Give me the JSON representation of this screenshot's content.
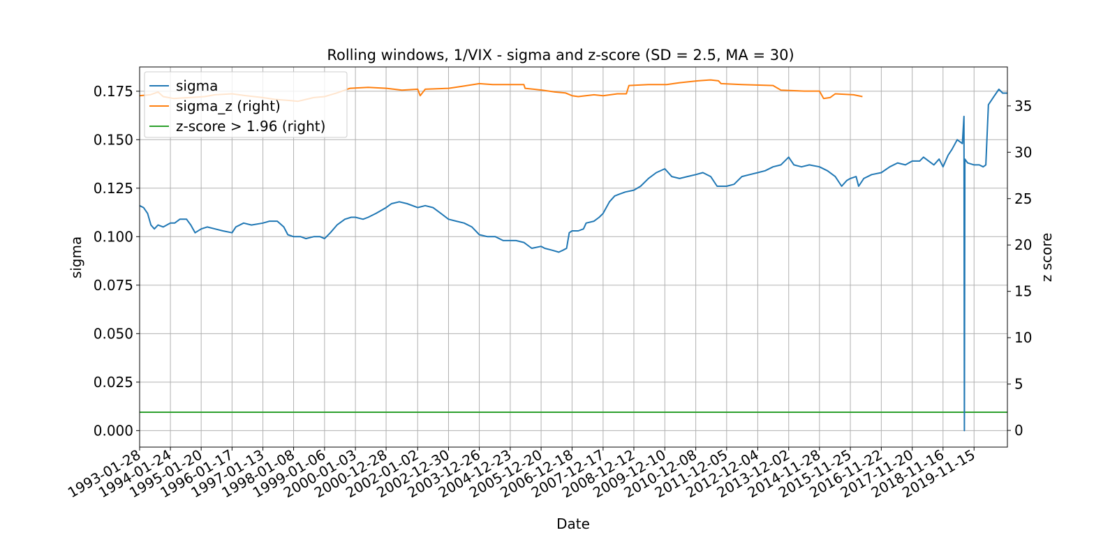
{
  "chart_data": {
    "type": "line",
    "title": "Rolling windows, 1/VIX - sigma and z-score (SD = 2.5, MA = 30)",
    "xlabel": "Date",
    "ylabel": "sigma",
    "y2label": "z score",
    "ylim": [
      -0.0085,
      0.1875
    ],
    "y2lim": [
      -1.8,
      39.2
    ],
    "yticks": [
      "0.000",
      "0.025",
      "0.050",
      "0.075",
      "0.100",
      "0.125",
      "0.150",
      "0.175"
    ],
    "y2ticks": [
      "0",
      "5",
      "10",
      "15",
      "20",
      "25",
      "30",
      "35"
    ],
    "xlim": [
      "1993-01-28",
      "2020-12-10"
    ],
    "xticks": [
      "1993-01-28",
      "1994-01-24",
      "1995-01-20",
      "1996-01-17",
      "1997-01-13",
      "1998-01-08",
      "1999-01-06",
      "2000-01-03",
      "2000-12-28",
      "2002-01-02",
      "2002-12-30",
      "2003-12-26",
      "2004-12-23",
      "2005-12-20",
      "2006-12-18",
      "2007-12-17",
      "2008-12-12",
      "2009-12-10",
      "2010-12-08",
      "2011-12-05",
      "2012-12-04",
      "2013-12-02",
      "2014-11-28",
      "2015-11-25",
      "2016-11-22",
      "2017-11-20",
      "2018-11-16",
      "2019-11-15"
    ],
    "grid": true,
    "legend_position": "upper-left",
    "colors": {
      "sigma": "#1f77b4",
      "sigma_z": "#ff7f0e",
      "threshold": "#2ca02c"
    },
    "series": [
      {
        "name": "sigma",
        "axis": "left",
        "color": "#1f77b4",
        "points": [
          [
            "1993-01-28",
            0.116
          ],
          [
            "1993-03-15",
            0.115
          ],
          [
            "1993-05-01",
            0.112
          ],
          [
            "1993-06-10",
            0.106
          ],
          [
            "1993-07-20",
            0.104
          ],
          [
            "1993-09-01",
            0.106
          ],
          [
            "1993-11-01",
            0.105
          ],
          [
            "1994-01-24",
            0.107
          ],
          [
            "1994-03-15",
            0.107
          ],
          [
            "1994-05-15",
            0.109
          ],
          [
            "1994-08-01",
            0.109
          ],
          [
            "1994-09-20",
            0.106
          ],
          [
            "1994-11-10",
            0.102
          ],
          [
            "1995-01-20",
            0.104
          ],
          [
            "1995-04-01",
            0.105
          ],
          [
            "1995-07-01",
            0.104
          ],
          [
            "1995-10-01",
            0.103
          ],
          [
            "1996-01-17",
            0.102
          ],
          [
            "1996-03-01",
            0.105
          ],
          [
            "1996-06-01",
            0.107
          ],
          [
            "1996-09-01",
            0.106
          ],
          [
            "1997-01-13",
            0.107
          ],
          [
            "1997-04-01",
            0.108
          ],
          [
            "1997-07-01",
            0.108
          ],
          [
            "1997-09-15",
            0.105
          ],
          [
            "1997-11-01",
            0.101
          ],
          [
            "1998-01-08",
            0.1
          ],
          [
            "1998-04-01",
            0.1
          ],
          [
            "1998-06-01",
            0.099
          ],
          [
            "1998-09-01",
            0.1
          ],
          [
            "1998-11-15",
            0.1
          ],
          [
            "1999-01-06",
            0.099
          ],
          [
            "1999-03-15",
            0.102
          ],
          [
            "1999-06-01",
            0.106
          ],
          [
            "1999-09-01",
            0.109
          ],
          [
            "1999-11-15",
            0.11
          ],
          [
            "2000-01-03",
            0.11
          ],
          [
            "2000-04-01",
            0.109
          ],
          [
            "2000-06-01",
            0.11
          ],
          [
            "2000-09-01",
            0.112
          ],
          [
            "2000-12-28",
            0.115
          ],
          [
            "2001-03-01",
            0.117
          ],
          [
            "2001-06-01",
            0.118
          ],
          [
            "2001-09-01",
            0.117
          ],
          [
            "2002-01-02",
            0.115
          ],
          [
            "2002-04-01",
            0.116
          ],
          [
            "2002-07-01",
            0.115
          ],
          [
            "2002-10-01",
            0.112
          ],
          [
            "2002-12-30",
            0.109
          ],
          [
            "2003-04-01",
            0.108
          ],
          [
            "2003-07-01",
            0.107
          ],
          [
            "2003-10-01",
            0.105
          ],
          [
            "2003-12-26",
            0.101
          ],
          [
            "2004-04-01",
            0.1
          ],
          [
            "2004-07-01",
            0.1
          ],
          [
            "2004-10-01",
            0.098
          ],
          [
            "2004-12-23",
            0.098
          ],
          [
            "2005-03-01",
            0.098
          ],
          [
            "2005-06-01",
            0.097
          ],
          [
            "2005-09-01",
            0.094
          ],
          [
            "2005-12-20",
            0.095
          ],
          [
            "2006-02-01",
            0.094
          ],
          [
            "2006-05-01",
            0.093
          ],
          [
            "2006-07-15",
            0.092
          ],
          [
            "2006-09-01",
            0.093
          ],
          [
            "2006-10-15",
            0.094
          ],
          [
            "2006-11-15",
            0.102
          ],
          [
            "2006-12-18",
            0.103
          ],
          [
            "2007-03-01",
            0.103
          ],
          [
            "2007-05-01",
            0.104
          ],
          [
            "2007-06-01",
            0.107
          ],
          [
            "2007-09-01",
            0.108
          ],
          [
            "2007-11-01",
            0.11
          ],
          [
            "2007-12-17",
            0.112
          ],
          [
            "2008-03-01",
            0.118
          ],
          [
            "2008-05-01",
            0.121
          ],
          [
            "2008-07-01",
            0.122
          ],
          [
            "2008-09-01",
            0.123
          ],
          [
            "2008-12-12",
            0.124
          ],
          [
            "2009-03-01",
            0.126
          ],
          [
            "2009-06-01",
            0.13
          ],
          [
            "2009-09-01",
            0.133
          ],
          [
            "2009-12-10",
            0.135
          ],
          [
            "2010-03-01",
            0.131
          ],
          [
            "2010-06-01",
            0.13
          ],
          [
            "2010-09-01",
            0.131
          ],
          [
            "2010-12-08",
            0.132
          ],
          [
            "2011-03-01",
            0.133
          ],
          [
            "2011-06-01",
            0.131
          ],
          [
            "2011-08-15",
            0.126
          ],
          [
            "2011-12-05",
            0.126
          ],
          [
            "2012-03-01",
            0.127
          ],
          [
            "2012-06-01",
            0.131
          ],
          [
            "2012-09-01",
            0.132
          ],
          [
            "2012-12-04",
            0.133
          ],
          [
            "2013-03-01",
            0.134
          ],
          [
            "2013-06-01",
            0.136
          ],
          [
            "2013-09-01",
            0.137
          ],
          [
            "2013-12-02",
            0.141
          ],
          [
            "2014-02-01",
            0.137
          ],
          [
            "2014-05-01",
            0.136
          ],
          [
            "2014-08-01",
            0.137
          ],
          [
            "2014-11-28",
            0.136
          ],
          [
            "2015-03-01",
            0.134
          ],
          [
            "2015-06-01",
            0.131
          ],
          [
            "2015-08-15",
            0.126
          ],
          [
            "2015-10-15",
            0.129
          ],
          [
            "2015-11-25",
            0.13
          ],
          [
            "2016-02-01",
            0.131
          ],
          [
            "2016-03-01",
            0.126
          ],
          [
            "2016-05-01",
            0.13
          ],
          [
            "2016-08-01",
            0.132
          ],
          [
            "2016-11-22",
            0.133
          ],
          [
            "2017-03-01",
            0.136
          ],
          [
            "2017-06-01",
            0.138
          ],
          [
            "2017-09-01",
            0.137
          ],
          [
            "2017-11-20",
            0.139
          ],
          [
            "2018-02-15",
            0.139
          ],
          [
            "2018-04-01",
            0.141
          ],
          [
            "2018-06-01",
            0.139
          ],
          [
            "2018-08-01",
            0.137
          ],
          [
            "2018-10-01",
            0.14
          ],
          [
            "2018-11-16",
            0.136
          ],
          [
            "2019-01-15",
            0.142
          ],
          [
            "2019-03-01",
            0.145
          ],
          [
            "2019-05-01",
            0.15
          ],
          [
            "2019-07-01",
            0.148
          ],
          [
            "2019-07-20",
            0.162
          ],
          [
            "2019-07-25",
            0.0
          ],
          [
            "2019-07-30",
            0.14
          ],
          [
            "2019-09-01",
            0.138
          ],
          [
            "2019-11-15",
            0.137
          ],
          [
            "2020-01-15",
            0.137
          ],
          [
            "2020-03-01",
            0.136
          ],
          [
            "2020-04-01",
            0.137
          ],
          [
            "2020-05-01",
            0.168
          ],
          [
            "2020-07-01",
            0.172
          ],
          [
            "2020-09-01",
            0.176
          ],
          [
            "2020-10-15",
            0.174
          ],
          [
            "2020-12-10",
            0.174
          ]
        ]
      },
      {
        "name": "sigma_z (right)",
        "axis": "right",
        "color": "#ff7f0e",
        "points": [
          [
            "1993-01-28",
            36.1
          ],
          [
            "1993-06-01",
            36.2
          ],
          [
            "1993-09-01",
            36.5
          ],
          [
            "1993-11-01",
            36.0
          ],
          [
            "1994-03-01",
            35.8
          ],
          [
            "1994-09-01",
            35.9
          ],
          [
            "1995-03-01",
            36.0
          ],
          [
            "1995-07-01",
            36.2
          ],
          [
            "1996-01-17",
            36.3
          ],
          [
            "1996-07-01",
            36.1
          ],
          [
            "1997-01-13",
            35.9
          ],
          [
            "1997-06-01",
            35.7
          ],
          [
            "1997-11-01",
            35.6
          ],
          [
            "1998-03-01",
            35.5
          ],
          [
            "1998-09-01",
            35.9
          ],
          [
            "1999-01-06",
            36.0
          ],
          [
            "1999-06-01",
            36.4
          ],
          [
            "1999-11-01",
            36.9
          ],
          [
            "2000-06-01",
            37.0
          ],
          [
            "2001-01-01",
            36.9
          ],
          [
            "2001-07-01",
            36.7
          ],
          [
            "2002-01-02",
            36.8
          ],
          [
            "2002-02-01",
            36.1
          ],
          [
            "2002-04-01",
            36.8
          ],
          [
            "2003-01-01",
            36.9
          ],
          [
            "2003-06-01",
            37.1
          ],
          [
            "2003-12-26",
            37.4
          ],
          [
            "2004-06-01",
            37.3
          ],
          [
            "2004-12-23",
            37.3
          ],
          [
            "2005-06-01",
            37.3
          ],
          [
            "2005-06-15",
            36.9
          ],
          [
            "2006-01-01",
            36.7
          ],
          [
            "2006-06-01",
            36.5
          ],
          [
            "2006-10-01",
            36.4
          ],
          [
            "2006-12-18",
            36.1
          ],
          [
            "2007-03-01",
            36.0
          ],
          [
            "2007-09-01",
            36.2
          ],
          [
            "2007-12-17",
            36.1
          ],
          [
            "2008-06-01",
            36.3
          ],
          [
            "2008-09-15",
            36.3
          ],
          [
            "2008-10-15",
            37.2
          ],
          [
            "2009-06-01",
            37.3
          ],
          [
            "2010-01-01",
            37.3
          ],
          [
            "2010-06-01",
            37.5
          ],
          [
            "2011-01-01",
            37.7
          ],
          [
            "2011-06-01",
            37.8
          ],
          [
            "2011-09-01",
            37.7
          ],
          [
            "2011-10-01",
            37.4
          ],
          [
            "2012-06-01",
            37.3
          ],
          [
            "2013-06-01",
            37.2
          ],
          [
            "2013-09-01",
            36.7
          ],
          [
            "2014-06-01",
            36.6
          ],
          [
            "2014-11-28",
            36.6
          ],
          [
            "2015-01-15",
            35.8
          ],
          [
            "2015-04-01",
            35.9
          ],
          [
            "2015-06-01",
            36.3
          ],
          [
            "2016-01-01",
            36.2
          ],
          [
            "2016-04-15",
            36.0
          ]
        ]
      },
      {
        "name": "z-score > 1.96 (right)",
        "axis": "right",
        "color": "#2ca02c",
        "constant": 1.96,
        "points": [
          [
            "1993-01-28",
            1.96
          ],
          [
            "2020-12-10",
            1.96
          ]
        ]
      }
    ]
  }
}
